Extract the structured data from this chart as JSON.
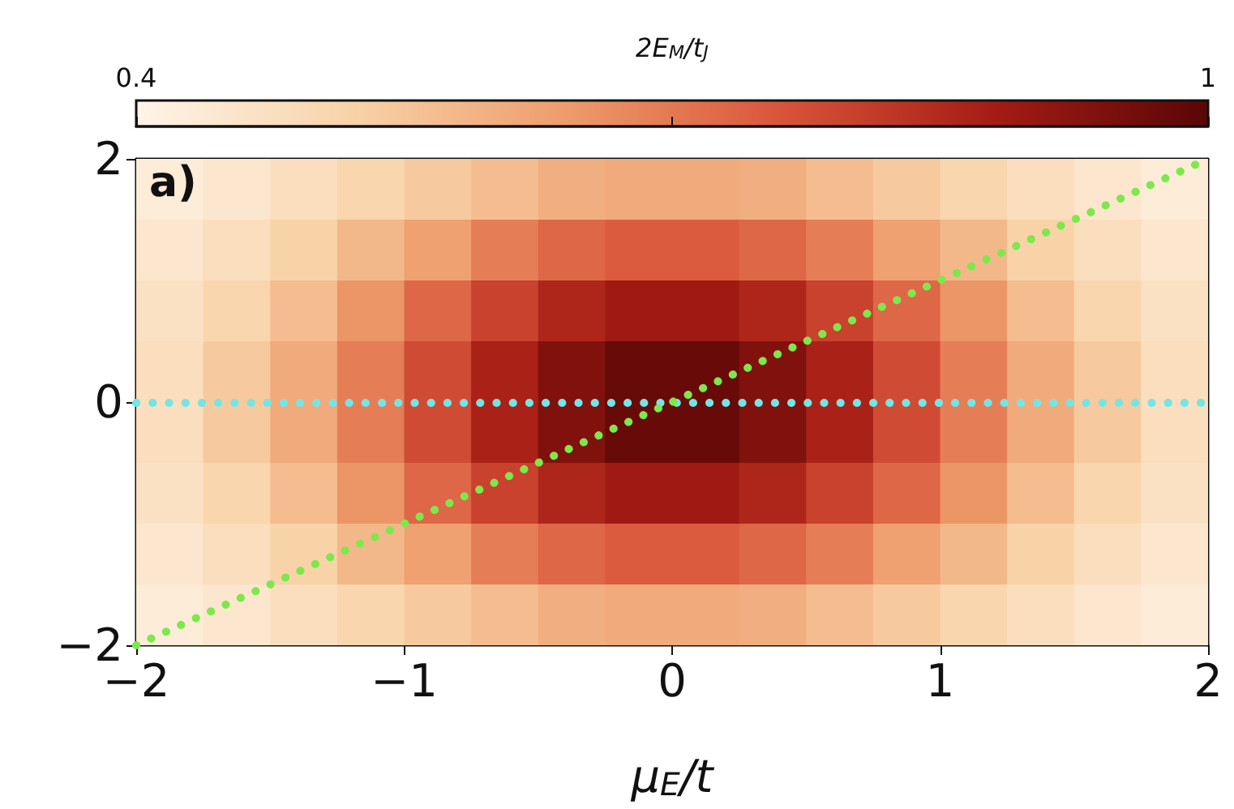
{
  "chart_data": {
    "type": "heatmap",
    "xlabel": "μ$_{E}$/t",
    "clabel": "2E$_{M}$/t$_{J}$",
    "annotations": [
      "a)"
    ],
    "x": [
      -1.875,
      -1.625,
      -1.375,
      -1.125,
      -0.875,
      -0.625,
      -0.375,
      -0.125,
      0.125,
      0.375,
      0.625,
      0.875,
      1.125,
      1.375,
      1.625,
      1.875
    ],
    "cells": [
      [
        0.43,
        0.45,
        0.48,
        0.51,
        0.54,
        0.57,
        0.6,
        0.61,
        0.61,
        0.6,
        0.57,
        0.54,
        0.51,
        0.48,
        0.45,
        0.43
      ],
      [
        0.45,
        0.48,
        0.52,
        0.58,
        0.63,
        0.69,
        0.73,
        0.75,
        0.75,
        0.73,
        0.69,
        0.63,
        0.58,
        0.52,
        0.48,
        0.45
      ],
      [
        0.47,
        0.51,
        0.57,
        0.65,
        0.73,
        0.8,
        0.86,
        0.89,
        0.89,
        0.86,
        0.8,
        0.73,
        0.65,
        0.57,
        0.51,
        0.47
      ],
      [
        0.48,
        0.54,
        0.61,
        0.69,
        0.78,
        0.87,
        0.94,
        0.98,
        0.98,
        0.94,
        0.87,
        0.78,
        0.69,
        0.61,
        0.54,
        0.48
      ],
      [
        0.48,
        0.54,
        0.61,
        0.69,
        0.78,
        0.87,
        0.94,
        0.98,
        0.98,
        0.94,
        0.87,
        0.78,
        0.69,
        0.61,
        0.54,
        0.48
      ],
      [
        0.47,
        0.51,
        0.57,
        0.65,
        0.73,
        0.8,
        0.86,
        0.89,
        0.89,
        0.86,
        0.8,
        0.73,
        0.65,
        0.57,
        0.51,
        0.47
      ],
      [
        0.45,
        0.48,
        0.52,
        0.58,
        0.63,
        0.69,
        0.73,
        0.75,
        0.75,
        0.73,
        0.69,
        0.63,
        0.58,
        0.52,
        0.48,
        0.45
      ],
      [
        0.43,
        0.45,
        0.48,
        0.51,
        0.54,
        0.57,
        0.6,
        0.61,
        0.61,
        0.6,
        0.57,
        0.54,
        0.51,
        0.48,
        0.45,
        0.43
      ]
    ],
    "clim": [
      0.4,
      1
    ],
    "cticks": [
      0.4,
      {
        "value": 0.7,
        "label": null
      },
      1
    ],
    "xlim": [
      -2,
      2
    ],
    "xticks": [
      -2,
      -1,
      0,
      1,
      2
    ],
    "ylim": [
      -2,
      2
    ],
    "yticks": [
      -2,
      0,
      2
    ],
    "series": [
      {
        "type": "line",
        "color": "#7de84c",
        "x": [
          -2,
          2
        ],
        "values": [
          -2,
          2
        ],
        "line_style": "dotted",
        "marker": "none"
      }
    ],
    "ref_lines": [
      {
        "axis": "y",
        "value": 0,
        "color": "#72e6e6",
        "line_style": "dotted"
      }
    ],
    "grid": false
  }
}
